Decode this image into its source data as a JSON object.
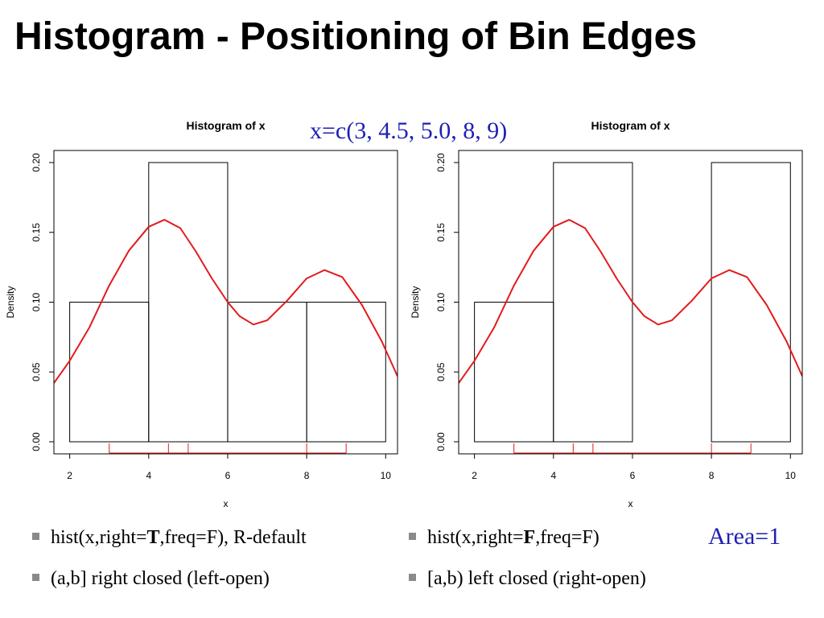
{
  "slide": {
    "title": "Histogram - Positioning of Bin Edges",
    "x_definition": "x=c(3, 4.5, 5.0, 8, 9)",
    "area_note": "Area=1"
  },
  "bullets": {
    "left": [
      {
        "parts": [
          {
            "text": "hist(x,right=",
            "bold": false
          },
          {
            "text": "T",
            "bold": true
          },
          {
            "text": ",freq=F), R-default",
            "bold": false
          }
        ]
      },
      {
        "parts": [
          {
            "text": "(a,b] right closed (left-open)",
            "bold": false
          }
        ]
      }
    ],
    "right": [
      {
        "parts": [
          {
            "text": "hist(x,right=",
            "bold": false
          },
          {
            "text": "F",
            "bold": true
          },
          {
            "text": ",freq=F)",
            "bold": false
          }
        ]
      },
      {
        "parts": [
          {
            "text": "[a,b) left closed (right-open)",
            "bold": false
          }
        ]
      }
    ]
  },
  "colors": {
    "density_line": "#e31a1c",
    "rug": "#e31a1c",
    "bars_stroke": "#000000",
    "blue_text": "#1f1fb4"
  },
  "chart_data": [
    {
      "type": "bar",
      "title": "Histogram of x",
      "xlabel": "x",
      "ylabel": "Density",
      "xlim": [
        1.6,
        10.3
      ],
      "ylim": [
        0,
        0.2
      ],
      "x_ticks": [
        "2",
        "4",
        "6",
        "8",
        "10"
      ],
      "y_ticks": [
        "0.00",
        "0.05",
        "0.10",
        "0.15",
        "0.20"
      ],
      "bins": [
        [
          2,
          4
        ],
        [
          4,
          6
        ],
        [
          6,
          8
        ],
        [
          8,
          10
        ]
      ],
      "values": [
        0.1,
        0.2,
        0.1,
        0.1
      ],
      "rug": [
        3,
        4.5,
        5,
        8,
        9
      ],
      "density_points": [
        [
          1.6,
          0.042
        ],
        [
          2,
          0.058
        ],
        [
          2.5,
          0.082
        ],
        [
          3,
          0.112
        ],
        [
          3.5,
          0.137
        ],
        [
          4,
          0.154
        ],
        [
          4.4,
          0.159
        ],
        [
          4.8,
          0.153
        ],
        [
          5.2,
          0.136
        ],
        [
          5.6,
          0.117
        ],
        [
          6,
          0.1
        ],
        [
          6.3,
          0.09
        ],
        [
          6.65,
          0.084
        ],
        [
          7,
          0.087
        ],
        [
          7.5,
          0.101
        ],
        [
          8,
          0.117
        ],
        [
          8.45,
          0.123
        ],
        [
          8.9,
          0.118
        ],
        [
          9.4,
          0.098
        ],
        [
          9.9,
          0.072
        ],
        [
          10.3,
          0.047
        ]
      ],
      "grid": false
    },
    {
      "type": "bar",
      "title": "Histogram of x",
      "xlabel": "x",
      "ylabel": "Density",
      "xlim": [
        1.6,
        10.3
      ],
      "ylim": [
        0,
        0.2
      ],
      "x_ticks": [
        "2",
        "4",
        "6",
        "8",
        "10"
      ],
      "y_ticks": [
        "0.00",
        "0.05",
        "0.10",
        "0.15",
        "0.20"
      ],
      "bins": [
        [
          2,
          4
        ],
        [
          4,
          6
        ],
        [
          6,
          8
        ],
        [
          8,
          10
        ]
      ],
      "values": [
        0.1,
        0.2,
        0,
        0.2
      ],
      "rug": [
        3,
        4.5,
        5,
        8,
        9
      ],
      "density_points": [
        [
          1.6,
          0.042
        ],
        [
          2,
          0.058
        ],
        [
          2.5,
          0.082
        ],
        [
          3,
          0.112
        ],
        [
          3.5,
          0.137
        ],
        [
          4,
          0.154
        ],
        [
          4.4,
          0.159
        ],
        [
          4.8,
          0.153
        ],
        [
          5.2,
          0.136
        ],
        [
          5.6,
          0.117
        ],
        [
          6,
          0.1
        ],
        [
          6.3,
          0.09
        ],
        [
          6.65,
          0.084
        ],
        [
          7,
          0.087
        ],
        [
          7.5,
          0.101
        ],
        [
          8,
          0.117
        ],
        [
          8.45,
          0.123
        ],
        [
          8.9,
          0.118
        ],
        [
          9.4,
          0.098
        ],
        [
          9.9,
          0.072
        ],
        [
          10.3,
          0.047
        ]
      ],
      "grid": false
    }
  ]
}
